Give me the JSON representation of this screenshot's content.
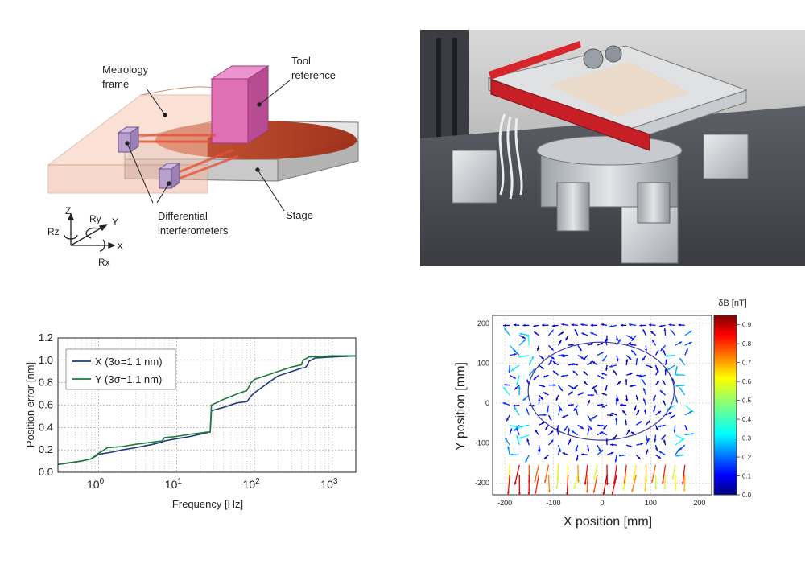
{
  "diagram": {
    "labels": {
      "metrology_frame_1": "Metrology",
      "metrology_frame_2": "frame",
      "tool_reference_1": "Tool",
      "tool_reference_2": "reference",
      "differential_1": "Differential",
      "differential_2": "interferometers",
      "stage": "Stage"
    },
    "axes": {
      "z": "Z",
      "rz": "Rz",
      "ry": "Ry",
      "y": "Y",
      "x": "X",
      "rx": "Rx"
    },
    "colors": {
      "frame": "#f6c7b3",
      "tool": "#e06fb4",
      "stage": "#d4d4d4",
      "wafer": "#b33a1e",
      "interferometer": "#b9a1cf",
      "beam": "#e8503a"
    }
  },
  "chart_data": [
    {
      "type": "line",
      "xscale": "log",
      "xlabel": "Frequency [Hz]",
      "ylabel": "Position error [nm]",
      "xlim": [
        0.3,
        2000
      ],
      "ylim": [
        0.0,
        1.2
      ],
      "yticks": [
        "0.0",
        "0.2",
        "0.4",
        "0.6",
        "0.8",
        "1.0",
        "1.2"
      ],
      "xticks": [
        {
          "base": "10",
          "exp": "0",
          "value": 1
        },
        {
          "base": "10",
          "exp": "1",
          "value": 10
        },
        {
          "base": "10",
          "exp": "2",
          "value": 100
        },
        {
          "base": "10",
          "exp": "3",
          "value": 1000
        }
      ],
      "legend_position": "upper-left",
      "series": [
        {
          "name": "X (3σ=1.1 nm)",
          "color": "#1f3a7a",
          "x": [
            0.3,
            0.6,
            0.8,
            1.0,
            1.5,
            2,
            3,
            5,
            6.5,
            7,
            10,
            15,
            20,
            25,
            27,
            28,
            40,
            60,
            80,
            90,
            100,
            150,
            200,
            300,
            400,
            450,
            480,
            500,
            600,
            1000,
            2000
          ],
          "y": [
            0.07,
            0.1,
            0.12,
            0.16,
            0.18,
            0.2,
            0.22,
            0.25,
            0.27,
            0.28,
            0.3,
            0.32,
            0.34,
            0.355,
            0.36,
            0.55,
            0.58,
            0.62,
            0.63,
            0.68,
            0.71,
            0.8,
            0.86,
            0.9,
            0.93,
            0.935,
            0.96,
            0.99,
            1.02,
            1.03,
            1.04
          ]
        },
        {
          "name": "Y (3σ=1.1 nm)",
          "color": "#1d7a3a",
          "x": [
            0.3,
            0.6,
            0.8,
            1.0,
            1.3,
            2,
            3,
            5,
            6.5,
            7,
            10,
            15,
            20,
            25,
            27,
            28,
            40,
            60,
            80,
            90,
            100,
            150,
            200,
            300,
            400,
            420,
            500,
            1000,
            2000
          ],
          "y": [
            0.07,
            0.1,
            0.12,
            0.17,
            0.22,
            0.23,
            0.25,
            0.27,
            0.28,
            0.31,
            0.32,
            0.34,
            0.35,
            0.36,
            0.36,
            0.6,
            0.65,
            0.7,
            0.73,
            0.8,
            0.83,
            0.87,
            0.9,
            0.94,
            0.96,
            1.0,
            1.03,
            1.04,
            1.04
          ]
        }
      ]
    },
    {
      "type": "quiver",
      "xlabel": "X position [mm]",
      "ylabel": "Y position [mm]",
      "xlim": [
        -225,
        225
      ],
      "ylim": [
        -230,
        220
      ],
      "xticks": [
        "-200",
        "-100",
        "0",
        "100",
        "200"
      ],
      "yticks": [
        "200",
        "100",
        "0",
        "-100",
        "-200"
      ],
      "colorbar": {
        "title": "δB [nT]",
        "min": 0.0,
        "max": 0.95,
        "ticks": [
          "0.0",
          "0.1",
          "0.2",
          "0.3",
          "0.4",
          "0.5",
          "0.6",
          "0.7",
          "0.8",
          "0.9"
        ]
      },
      "circle": {
        "cx": -2,
        "cy": 30,
        "r": 150
      },
      "grid_x": [
        -190,
        -170,
        -150,
        -130,
        -110,
        -90,
        -70,
        -50,
        -30,
        -10,
        10,
        30,
        50,
        70,
        90,
        110,
        130,
        150,
        170
      ],
      "grid_y": [
        195,
        170,
        145,
        120,
        95,
        70,
        45,
        20,
        -5,
        -30,
        -55,
        -80,
        -105,
        -130,
        -155,
        -180
      ]
    }
  ]
}
